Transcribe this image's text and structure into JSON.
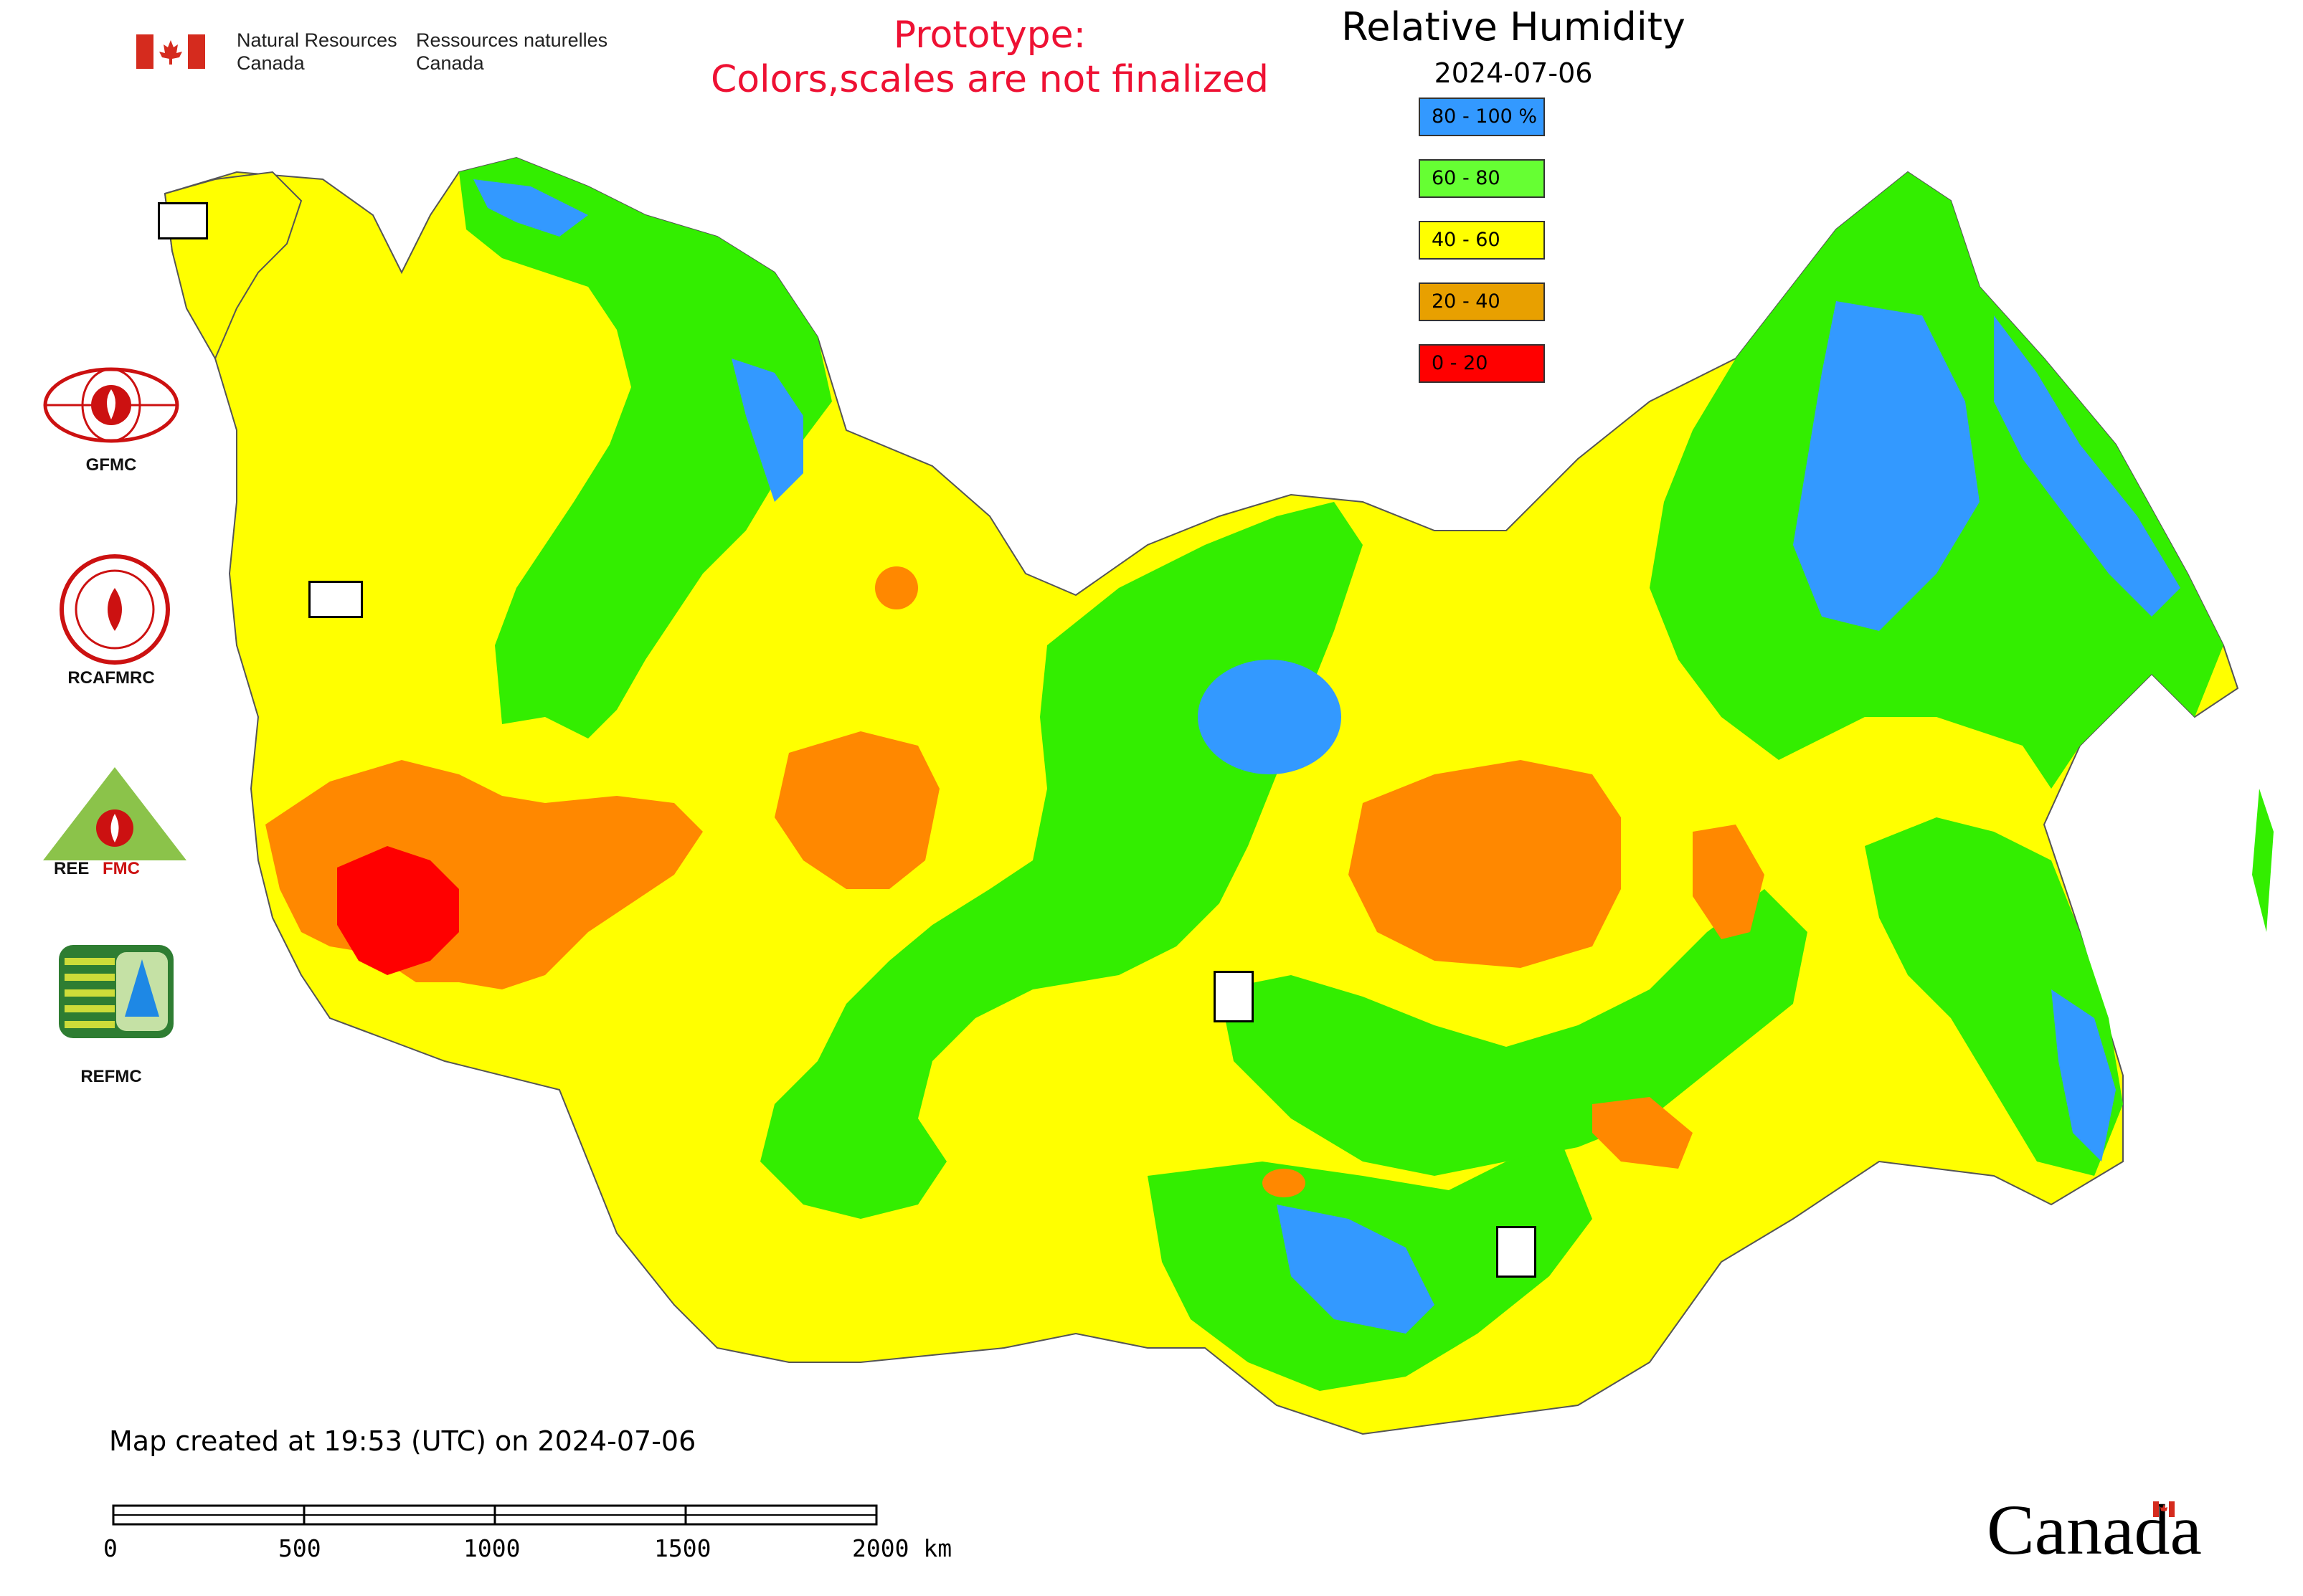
{
  "header": {
    "nrcan_en_line1": "Natural Resources",
    "nrcan_en_line2": "Canada",
    "nrcan_fr_line1": "Ressources naturelles",
    "nrcan_fr_line2": "Canada",
    "prototype_line1": "Prototype:",
    "prototype_line2": "Colors,scales are not finalized",
    "title": "Relative Humidity",
    "date": "2024-07-06"
  },
  "legend": [
    {
      "label": "80 - 100 %",
      "color": "#3399ff"
    },
    {
      "label": "60 - 80",
      "color": "#66ff33"
    },
    {
      "label": "40 - 60",
      "color": "#ffff00"
    },
    {
      "label": "20 - 40",
      "color": "#e8a000"
    },
    {
      "label": "0 - 20",
      "color": "#ff0000"
    }
  ],
  "map_colors": {
    "very_humid": "#3399ff",
    "humid": "#33ee00",
    "moderate": "#ffff00",
    "dry": "#ff8800",
    "very_dry": "#ff0000",
    "water": "#ffffff",
    "border": "#555555"
  },
  "organizations": [
    {
      "name": "GFMC",
      "icon": "gfmc-logo-icon"
    },
    {
      "name": "RCAFMRC",
      "icon": "rcafmrc-logo-icon"
    },
    {
      "name": "REEFMC",
      "icon": "reefmc-logo-icon"
    },
    {
      "name": "REFMC",
      "icon": "refmc-logo-icon"
    }
  ],
  "footer": {
    "created": "Map created at 19:53 (UTC) on 2024-07-06",
    "scale_labels": [
      "0",
      "500",
      "1000",
      "1500",
      "2000 km"
    ],
    "wordmark": "Canada"
  }
}
